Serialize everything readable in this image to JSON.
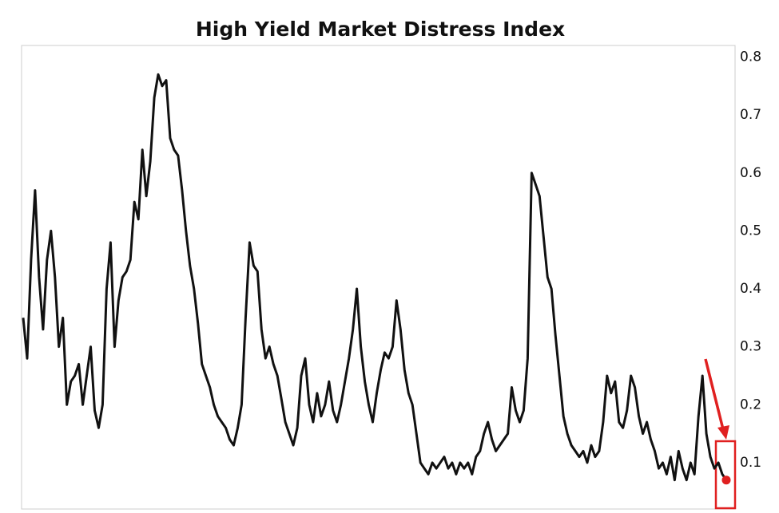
{
  "chart_data": {
    "type": "line",
    "title": "High Yield Market Distress Index",
    "color": "#111111",
    "marker_color": "#e02020",
    "ylim": [
      0.02,
      0.82
    ],
    "yticks": [
      0.1,
      0.2,
      0.3,
      0.4,
      0.5,
      0.6,
      0.7,
      0.8
    ],
    "values": [
      0.35,
      0.28,
      0.45,
      0.57,
      0.42,
      0.33,
      0.45,
      0.5,
      0.42,
      0.3,
      0.35,
      0.2,
      0.24,
      0.25,
      0.27,
      0.2,
      0.25,
      0.3,
      0.19,
      0.16,
      0.2,
      0.4,
      0.48,
      0.3,
      0.38,
      0.42,
      0.43,
      0.45,
      0.55,
      0.52,
      0.64,
      0.56,
      0.62,
      0.73,
      0.77,
      0.75,
      0.76,
      0.66,
      0.64,
      0.63,
      0.57,
      0.5,
      0.44,
      0.4,
      0.34,
      0.27,
      0.25,
      0.23,
      0.2,
      0.18,
      0.17,
      0.16,
      0.14,
      0.13,
      0.16,
      0.2,
      0.35,
      0.48,
      0.44,
      0.43,
      0.33,
      0.28,
      0.3,
      0.27,
      0.25,
      0.21,
      0.17,
      0.15,
      0.13,
      0.16,
      0.25,
      0.28,
      0.2,
      0.17,
      0.22,
      0.18,
      0.2,
      0.24,
      0.19,
      0.17,
      0.2,
      0.24,
      0.28,
      0.33,
      0.4,
      0.3,
      0.24,
      0.2,
      0.17,
      0.22,
      0.26,
      0.29,
      0.28,
      0.3,
      0.38,
      0.33,
      0.26,
      0.22,
      0.2,
      0.15,
      0.1,
      0.09,
      0.08,
      0.1,
      0.09,
      0.1,
      0.11,
      0.09,
      0.1,
      0.08,
      0.1,
      0.09,
      0.1,
      0.08,
      0.11,
      0.12,
      0.15,
      0.17,
      0.14,
      0.12,
      0.13,
      0.14,
      0.15,
      0.23,
      0.19,
      0.17,
      0.19,
      0.28,
      0.6,
      0.58,
      0.56,
      0.49,
      0.42,
      0.4,
      0.32,
      0.25,
      0.18,
      0.15,
      0.13,
      0.12,
      0.11,
      0.12,
      0.1,
      0.13,
      0.11,
      0.12,
      0.17,
      0.25,
      0.22,
      0.24,
      0.17,
      0.16,
      0.19,
      0.25,
      0.23,
      0.18,
      0.15,
      0.17,
      0.14,
      0.12,
      0.09,
      0.1,
      0.08,
      0.11,
      0.07,
      0.12,
      0.09,
      0.07,
      0.1,
      0.08,
      0.18,
      0.25,
      0.15,
      0.11,
      0.09,
      0.1,
      0.08,
      0.07
    ]
  }
}
